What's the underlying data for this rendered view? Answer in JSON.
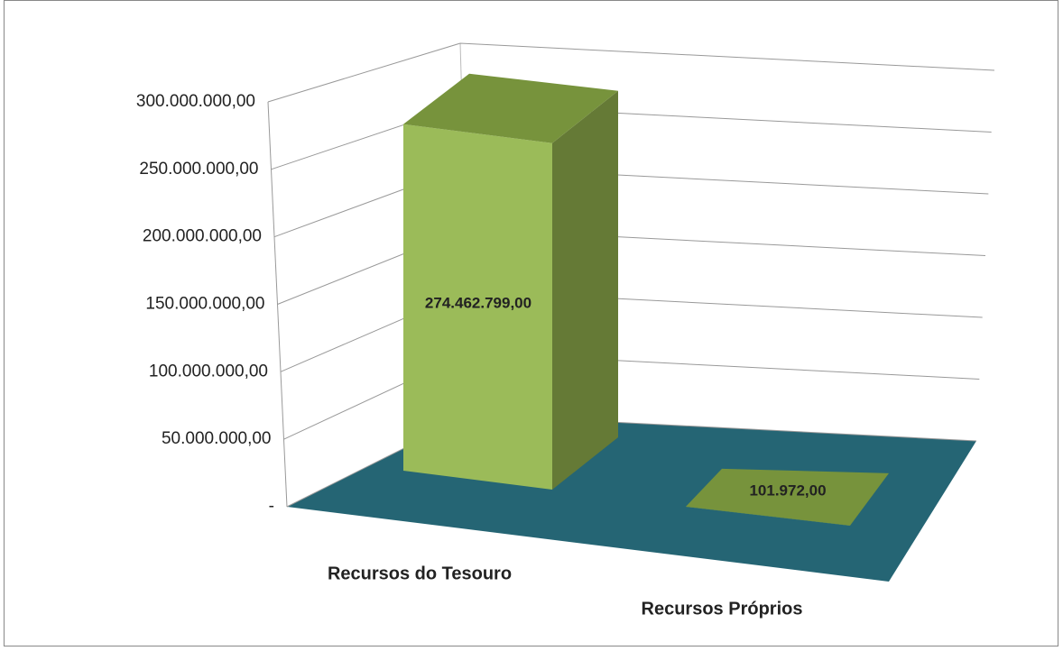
{
  "chart_data": {
    "type": "bar3d",
    "categories": [
      "Recursos do Tesouro",
      "Recursos Próprios"
    ],
    "values": [
      274462799,
      101972
    ],
    "value_labels": [
      "274.462.799,00",
      "101.972,00"
    ],
    "colors": {
      "front": "#9bbb59",
      "side": "#657a36",
      "top": "#77933c",
      "floor": "#256574"
    },
    "ylim": [
      0,
      300000000
    ],
    "yticks": [
      {
        "value": 0,
        "label": "-"
      },
      {
        "value": 50000000,
        "label": "50.000.000,00"
      },
      {
        "value": 100000000,
        "label": "100.000.000,00"
      },
      {
        "value": 150000000,
        "label": "150.000.000,00"
      },
      {
        "value": 200000000,
        "label": "200.000.000,00"
      },
      {
        "value": 250000000,
        "label": "250.000.000,00"
      },
      {
        "value": 300000000,
        "label": "300.000.000,00"
      }
    ],
    "grid": true
  }
}
